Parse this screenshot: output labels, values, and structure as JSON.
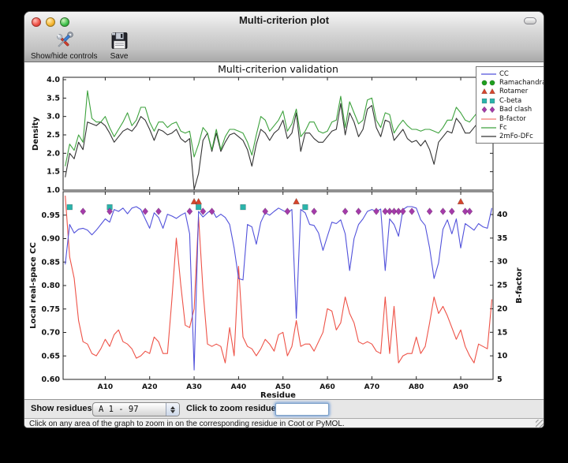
{
  "window": {
    "title": "Multi-criterion plot"
  },
  "toolbar": {
    "buttons": [
      {
        "label": "Show/hide controls",
        "icon": "tools-icon"
      },
      {
        "label": "Save",
        "icon": "save-icon"
      }
    ]
  },
  "controls": {
    "show_residues_label": "Show residues:",
    "chain_range_value": "A  1 - 97",
    "zoom_label": "Click to zoom residue:",
    "zoom_input_value": ""
  },
  "status_bar": {
    "text": "Click on any area of the graph to zoom in on the corresponding residue in Coot or PyMOL."
  },
  "legend": {
    "entries": [
      {
        "label": "CC",
        "swatch": "line",
        "color": "#5252db"
      },
      {
        "label": "Ramachandran",
        "swatch": "markers",
        "shape": "circle",
        "color": "#1f9e1f"
      },
      {
        "label": "Rotamer",
        "swatch": "markers",
        "shape": "triangle",
        "color": "#d6452c"
      },
      {
        "label": "C-beta",
        "swatch": "markers",
        "shape": "square",
        "color": "#2ab4ab"
      },
      {
        "label": "Bad clash",
        "swatch": "markers",
        "shape": "diamond",
        "color": "#a43ba9"
      },
      {
        "label": "B-factor",
        "swatch": "line",
        "color": "#f0796f"
      },
      {
        "label": "Fc",
        "swatch": "line",
        "color": "#3da23d"
      },
      {
        "label": "2mFo-DFc",
        "swatch": "line",
        "color": "#333333"
      }
    ]
  },
  "chart_data": [
    {
      "id": "density-panel",
      "type": "line",
      "title": "Multi-criterion validation",
      "ylabel": "Density",
      "ylim": [
        1.0,
        4.0
      ],
      "tick_values": [
        1.0,
        1.5,
        2.0,
        2.5,
        3.0,
        3.5,
        4.0
      ],
      "tick_labels": [
        "1.0",
        "1.5",
        "2.0",
        "2.5",
        "3.0",
        "3.5",
        "4.0"
      ],
      "x_range": [
        1,
        97
      ],
      "series": [
        {
          "name": "2mFo-DFc",
          "color": "#333333",
          "values": [
            1.35,
            2.0,
            1.85,
            2.3,
            2.1,
            2.85,
            2.8,
            2.75,
            2.85,
            2.75,
            2.55,
            2.3,
            2.45,
            2.6,
            2.67,
            2.6,
            2.75,
            3.0,
            2.9,
            2.65,
            2.35,
            2.65,
            2.6,
            2.5,
            2.55,
            2.65,
            2.4,
            2.3,
            2.4,
            1.02,
            1.45,
            2.35,
            2.55,
            2.05,
            2.55,
            2.05,
            2.3,
            2.5,
            2.55,
            2.45,
            2.35,
            2.1,
            1.65,
            2.25,
            2.65,
            2.55,
            2.35,
            2.55,
            2.65,
            2.9,
            2.4,
            2.55,
            3.1,
            2.05,
            2.55,
            2.55,
            2.4,
            2.3,
            2.3,
            2.45,
            2.6,
            2.65,
            3.35,
            2.5,
            3.1,
            2.85,
            2.45,
            2.65,
            3.2,
            3.3,
            2.7,
            2.45,
            2.9,
            2.85,
            2.35,
            2.5,
            2.65,
            2.4,
            2.3,
            2.35,
            2.2,
            2.35,
            2.1,
            1.7,
            2.3,
            2.45,
            2.6,
            2.55,
            2.95,
            2.8,
            2.55,
            2.55,
            2.7,
            2.85,
            2.6,
            2.65,
            3.2
          ]
        },
        {
          "name": "Fc",
          "color": "#3da23d",
          "values": [
            1.65,
            2.25,
            2.08,
            2.5,
            2.3,
            3.7,
            2.95,
            2.85,
            2.85,
            3.0,
            2.7,
            2.45,
            2.65,
            2.85,
            3.1,
            2.75,
            2.9,
            3.25,
            3.25,
            2.85,
            2.6,
            2.85,
            2.85,
            2.7,
            2.8,
            2.85,
            2.6,
            2.55,
            2.6,
            1.9,
            2.25,
            2.7,
            2.55,
            2.1,
            2.65,
            2.1,
            2.45,
            2.65,
            2.65,
            2.6,
            2.55,
            2.3,
            1.95,
            2.5,
            3.0,
            2.9,
            2.6,
            2.75,
            2.9,
            3.15,
            2.6,
            2.8,
            3.2,
            2.45,
            2.6,
            2.85,
            2.85,
            2.6,
            2.55,
            2.6,
            2.85,
            2.9,
            3.55,
            2.7,
            3.4,
            3.1,
            2.8,
            2.9,
            3.45,
            3.5,
            2.9,
            2.7,
            3.1,
            3.05,
            2.55,
            2.75,
            2.9,
            2.75,
            2.65,
            2.65,
            2.6,
            2.65,
            2.65,
            2.6,
            2.55,
            2.7,
            2.9,
            2.9,
            3.25,
            3.1,
            2.9,
            2.85,
            3.0,
            3.15,
            3.45,
            3.0,
            3.15
          ]
        }
      ]
    },
    {
      "id": "cc-bfactor-panel",
      "type": "line",
      "xlabel": "Residue",
      "xticks": [
        {
          "residue": 10,
          "label": "A10"
        },
        {
          "residue": 20,
          "label": "A20"
        },
        {
          "residue": 30,
          "label": "A30"
        },
        {
          "residue": 40,
          "label": "A40"
        },
        {
          "residue": 50,
          "label": "A50"
        },
        {
          "residue": 60,
          "label": "A60"
        },
        {
          "residue": 70,
          "label": "A70"
        },
        {
          "residue": 80,
          "label": "A80"
        },
        {
          "residue": 90,
          "label": "A90"
        }
      ],
      "ylabel_left": "Local real-space CC",
      "ylim_left": [
        0.6,
        1.0
      ],
      "tick_values_left": [
        0.6,
        0.65,
        0.7,
        0.75,
        0.8,
        0.85,
        0.9,
        0.95
      ],
      "tick_labels_left": [
        "0.60",
        "0.65",
        "0.70",
        "0.75",
        "0.80",
        "0.85",
        "0.90",
        "0.95"
      ],
      "ylabel_right": "B-factor",
      "ylim_right": [
        5,
        45
      ],
      "tick_values_right": [
        5,
        10,
        15,
        20,
        25,
        30,
        35,
        40
      ],
      "tick_labels_right": [
        "5",
        "10",
        "15",
        "20",
        "25",
        "30",
        "35",
        "40"
      ],
      "x_range": [
        1,
        97
      ],
      "series": [
        {
          "name": "B-factor",
          "axis": "right",
          "color": "#ee5247",
          "values": [
            44,
            31,
            26.5,
            17.5,
            13,
            12.5,
            10.5,
            10,
            11.5,
            13.5,
            12,
            14.5,
            15.5,
            13,
            12.5,
            11.5,
            9.5,
            10,
            11,
            10.5,
            14,
            13,
            10.5,
            10.5,
            22,
            35,
            25,
            16.5,
            16,
            20,
            39.5,
            24,
            12.5,
            12,
            12.5,
            12,
            8.5,
            16,
            10,
            29,
            14,
            12,
            11.5,
            10,
            11.5,
            13.5,
            12.5,
            11,
            14.5,
            15,
            10,
            12,
            17.5,
            12,
            12.5,
            12.5,
            11,
            13,
            15,
            20,
            19.5,
            15.5,
            17,
            22.5,
            19,
            17,
            13,
            12.5,
            13,
            12.5,
            11,
            10.5,
            22.5,
            10.5,
            20.5,
            8.5,
            10,
            10.5,
            10.5,
            14,
            10.5,
            12,
            17,
            22.5,
            19,
            20.5,
            18.5,
            16,
            13.5,
            15.5,
            12,
            10,
            8.5,
            12.5,
            12,
            11.5,
            22
          ]
        },
        {
          "name": "CC",
          "axis": "left",
          "color": "#5252db",
          "values": [
            0.845,
            0.93,
            0.912,
            0.92,
            0.922,
            0.918,
            0.908,
            0.918,
            0.93,
            0.942,
            0.935,
            0.962,
            0.958,
            0.965,
            0.953,
            0.965,
            0.968,
            0.962,
            0.942,
            0.922,
            0.955,
            0.945,
            0.922,
            0.952,
            0.948,
            0.943,
            0.95,
            0.955,
            0.91,
            0.62,
            0.958,
            0.946,
            0.955,
            0.962,
            0.945,
            0.952,
            0.945,
            0.93,
            0.88,
            0.815,
            0.812,
            0.93,
            0.925,
            0.888,
            0.935,
            0.955,
            0.95,
            0.958,
            0.965,
            0.96,
            0.955,
            0.962,
            0.73,
            0.962,
            0.955,
            0.93,
            0.928,
            0.912,
            0.875,
            0.905,
            0.935,
            0.932,
            0.94,
            0.91,
            0.832,
            0.9,
            0.93,
            0.942,
            0.958,
            0.962,
            0.958,
            0.963,
            0.832,
            0.942,
            0.93,
            0.905,
            0.962,
            0.968,
            0.968,
            0.965,
            0.94,
            0.928,
            0.88,
            0.815,
            0.848,
            0.92,
            0.94,
            0.91,
            0.942,
            0.88,
            0.932,
            0.925,
            0.918,
            0.932,
            0.925,
            0.922,
            0.965
          ]
        }
      ],
      "outlier_markers": [
        {
          "name": "Ramachandran",
          "shape": "circle",
          "color": "#1f9e1f",
          "y": 0.99,
          "residues": []
        },
        {
          "name": "Rotamer",
          "shape": "triangle",
          "color": "#d6452c",
          "y": 0.979,
          "residues": [
            30,
            31,
            53,
            90
          ]
        },
        {
          "name": "C-beta",
          "shape": "square",
          "color": "#2ab4ab",
          "y": 0.967,
          "residues": [
            2,
            11,
            31,
            41,
            55
          ]
        },
        {
          "name": "Bad clash",
          "shape": "diamond",
          "color": "#a43ba9",
          "y": 0.958,
          "residues": [
            5,
            11,
            19,
            22,
            29,
            32,
            34,
            46,
            51,
            57,
            64,
            67,
            71,
            73,
            74,
            75,
            76,
            77,
            79,
            83,
            86,
            88,
            91,
            92
          ]
        }
      ]
    }
  ]
}
